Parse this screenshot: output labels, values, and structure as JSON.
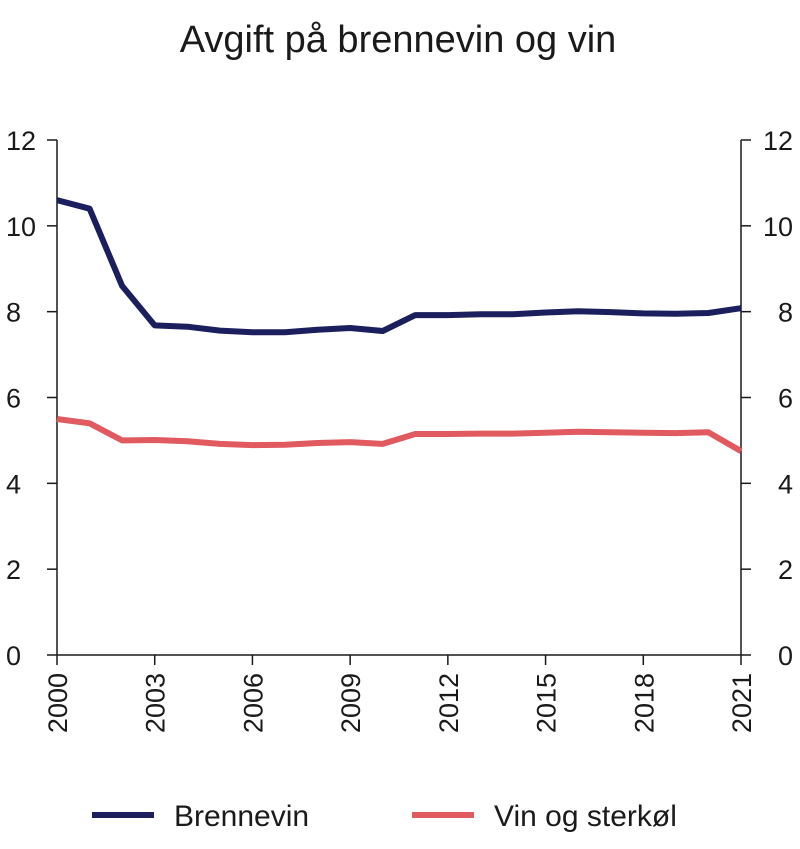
{
  "chart_data": {
    "type": "line",
    "title": "Avgift på brennevin og vin",
    "xlabel": "",
    "ylabel": "",
    "x": [
      2000,
      2001,
      2002,
      2003,
      2004,
      2005,
      2006,
      2007,
      2008,
      2009,
      2010,
      2011,
      2012,
      2013,
      2014,
      2015,
      2016,
      2017,
      2018,
      2019,
      2020,
      2021
    ],
    "x_ticks": [
      "2000",
      "2003",
      "2006",
      "2009",
      "2012",
      "2015",
      "2018",
      "2021"
    ],
    "y_ticks": [
      "0",
      "2",
      "4",
      "6",
      "8",
      "10",
      "12"
    ],
    "ylim": [
      0,
      12
    ],
    "xlim": [
      2000,
      2021
    ],
    "grid": false,
    "dual_y_axis": true,
    "legend_position": "bottom",
    "series": [
      {
        "name": "Brennevin",
        "color": "#1b1f5e",
        "values": [
          10.6,
          10.4,
          8.6,
          7.68,
          7.65,
          7.56,
          7.52,
          7.52,
          7.58,
          7.62,
          7.55,
          7.92,
          7.92,
          7.94,
          7.94,
          7.98,
          8.01,
          7.99,
          7.96,
          7.95,
          7.97,
          8.08
        ]
      },
      {
        "name": "Vin og sterkøl",
        "color": "#e05a5f",
        "values": [
          5.5,
          5.4,
          5.0,
          5.01,
          4.98,
          4.92,
          4.89,
          4.9,
          4.94,
          4.96,
          4.92,
          5.15,
          5.15,
          5.16,
          5.16,
          5.18,
          5.2,
          5.19,
          5.18,
          5.17,
          5.19,
          4.75
        ]
      }
    ]
  }
}
